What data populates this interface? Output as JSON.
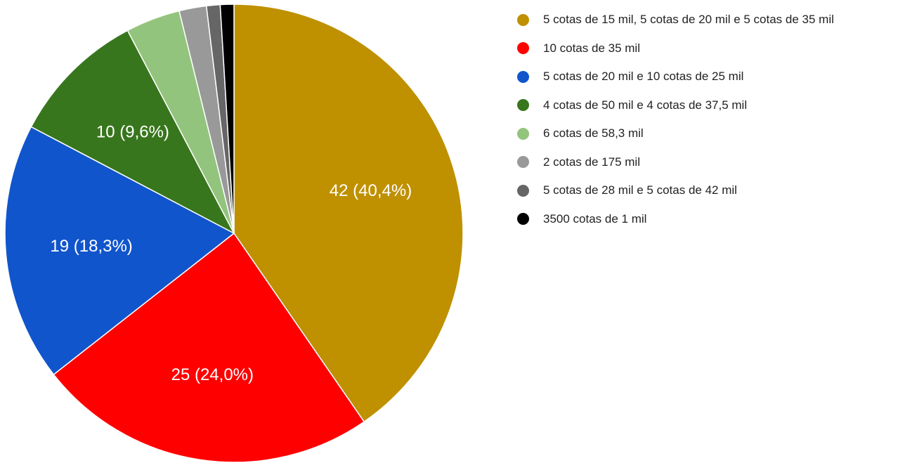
{
  "chart_data": {
    "type": "pie",
    "title": "",
    "legend_position": "right",
    "slices": [
      {
        "label": "5 cotas de 15 mil, 5 cotas de 20 mil e 5 cotas de 35 mil",
        "value": 42,
        "display": "42 (40,4%)",
        "color": "#bf9000"
      },
      {
        "label": "10 cotas de 35 mil",
        "value": 25,
        "display": "25 (24,0%)",
        "color": "#ff0000"
      },
      {
        "label": "5 cotas de 20 mil e 10 cotas de 25 mil",
        "value": 19,
        "display": "19 (18,3%)",
        "color": "#1155cc"
      },
      {
        "label": "4 cotas de 50 mil e 4 cotas de 37,5 mil",
        "value": 10,
        "display": "10 (9,6%)",
        "color": "#38761d"
      },
      {
        "label": "6 cotas de 58,3 mil",
        "value": 4,
        "display": "",
        "color": "#93c47d"
      },
      {
        "label": "2 cotas de 175 mil",
        "value": 2,
        "display": "",
        "color": "#999999"
      },
      {
        "label": "5 cotas de 28 mil e 5 cotas de 42 mil",
        "value": 1,
        "display": "",
        "color": "#666666"
      },
      {
        "label": "3500 cotas de 1 mil",
        "value": 1,
        "display": "",
        "color": "#000000"
      }
    ]
  }
}
